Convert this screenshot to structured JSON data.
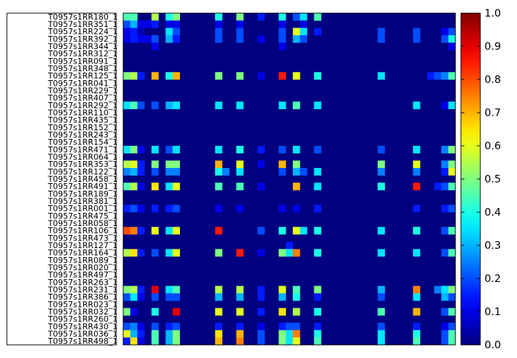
{
  "chart_data": {
    "type": "heatmap",
    "colormap": "jet",
    "row_labels": [
      "T0957s1RR180_1",
      "T0957s1RR351_1",
      "T0957s1RR224_1",
      "T0957s1RR392_1",
      "T0957s1RR344_1",
      "T0957s1RR312_1",
      "T0957s1RR091_1",
      "T0957s1RR348_1",
      "T0957s1RR125_1",
      "T0957s1RR041_1",
      "T0957s1RR229_1",
      "T0957s1RR407_1",
      "T0957s1RR292_1",
      "T0957s1RR110_1",
      "T0957s1RR435_1",
      "T0957s1RR152_1",
      "T0957s1RR243_1",
      "T0957s1RR154_1",
      "T0957s1RR471_1",
      "T0957s1RR064_1",
      "T0957s1RR353_1",
      "T0957s1RR122_1",
      "T0957s1RR458_1",
      "T0957s1RR491_1",
      "T0957s1RR189_1",
      "T0957s1RR381_1",
      "T0957s1RR001_1",
      "T0957s1RR475_1",
      "T0957s1RR058_1",
      "T0957s1RR106_1",
      "T0957s1RR473_1",
      "T0957s1RR127_1",
      "T0957s1RR164_1",
      "T0957s1RR089_1",
      "T0957s1RR020_1",
      "T0957s1RR497_1",
      "T0957s1RR263_1",
      "T0957s1RR231_1",
      "T0957s1RR386_1",
      "T0957s1RR023_1",
      "T0957s1RR032_1",
      "T0957s1RR260_1",
      "T0957s1RR430_1",
      "T0957s1RR036_1",
      "T0957s1RR498_1"
    ],
    "n_columns": 47,
    "colorbar": {
      "range": [
        0.0,
        1.0
      ],
      "ticks": [
        "0.0",
        "0.1",
        "0.2",
        "0.3",
        "0.4",
        "0.5",
        "0.6",
        "0.7",
        "0.8",
        "0.9",
        "1.0"
      ]
    },
    "cells": [
      [
        0,
        0,
        0.45
      ],
      [
        0,
        1,
        0.45
      ],
      [
        0,
        4,
        0.55
      ],
      [
        0,
        6,
        0.4
      ],
      [
        0,
        7,
        0.5
      ],
      [
        0,
        13,
        0.4
      ],
      [
        0,
        16,
        0.5
      ],
      [
        0,
        19,
        0.15
      ],
      [
        0,
        22,
        0.4
      ],
      [
        0,
        24,
        0.2
      ],
      [
        0,
        25,
        0.35
      ],
      [
        0,
        27,
        0.45
      ],
      [
        1,
        0,
        0.2
      ],
      [
        1,
        1,
        0.3
      ],
      [
        1,
        2,
        0.1
      ],
      [
        1,
        3,
        0.1
      ],
      [
        1,
        4,
        0.15
      ],
      [
        1,
        6,
        0.1
      ],
      [
        1,
        7,
        0.1
      ],
      [
        1,
        13,
        0.1
      ],
      [
        1,
        16,
        0.1
      ],
      [
        1,
        22,
        0.1
      ],
      [
        1,
        25,
        0.1
      ],
      [
        2,
        0,
        0.1
      ],
      [
        2,
        1,
        0.15
      ],
      [
        2,
        2,
        0.05
      ],
      [
        2,
        6,
        0.35
      ],
      [
        2,
        7,
        0.2
      ],
      [
        2,
        13,
        0.2
      ],
      [
        2,
        16,
        0.2
      ],
      [
        2,
        22,
        0.2
      ],
      [
        2,
        24,
        0.6
      ],
      [
        2,
        25,
        0.35
      ],
      [
        2,
        27,
        0.15
      ],
      [
        2,
        36,
        0.2
      ],
      [
        2,
        41,
        0.2
      ],
      [
        2,
        45,
        0.1
      ],
      [
        2,
        46,
        0.2
      ],
      [
        3,
        0,
        0.1
      ],
      [
        3,
        1,
        0.15
      ],
      [
        3,
        2,
        0.1
      ],
      [
        3,
        3,
        0.1
      ],
      [
        3,
        4,
        0.2
      ],
      [
        3,
        6,
        0.3
      ],
      [
        3,
        7,
        0.15
      ],
      [
        3,
        13,
        0.2
      ],
      [
        3,
        16,
        0.2
      ],
      [
        3,
        19,
        0.1
      ],
      [
        3,
        22,
        0.2
      ],
      [
        3,
        24,
        0.3
      ],
      [
        3,
        25,
        0.2
      ],
      [
        3,
        36,
        0.2
      ],
      [
        3,
        41,
        0.2
      ],
      [
        3,
        45,
        0.2
      ],
      [
        3,
        46,
        0.4
      ],
      [
        4,
        4,
        0.1
      ],
      [
        4,
        22,
        0.1
      ],
      [
        4,
        46,
        0.1
      ],
      [
        8,
        0,
        0.5
      ],
      [
        8,
        1,
        0.55
      ],
      [
        8,
        2,
        0.15
      ],
      [
        8,
        4,
        0.7
      ],
      [
        8,
        6,
        0.4
      ],
      [
        8,
        7,
        0.7
      ],
      [
        8,
        13,
        0.5
      ],
      [
        8,
        16,
        0.5
      ],
      [
        8,
        19,
        0.1
      ],
      [
        8,
        22,
        0.85
      ],
      [
        8,
        24,
        0.6
      ],
      [
        8,
        27,
        0.4
      ],
      [
        8,
        36,
        0.35
      ],
      [
        8,
        43,
        0.15
      ],
      [
        8,
        44,
        0.2
      ],
      [
        8,
        45,
        0.25
      ],
      [
        8,
        46,
        0.45
      ],
      [
        12,
        0,
        0.35
      ],
      [
        12,
        1,
        0.45
      ],
      [
        12,
        2,
        0.2
      ],
      [
        12,
        4,
        0.2
      ],
      [
        12,
        6,
        0.3
      ],
      [
        12,
        7,
        0.35
      ],
      [
        12,
        13,
        0.35
      ],
      [
        12,
        16,
        0.35
      ],
      [
        12,
        22,
        0.35
      ],
      [
        12,
        24,
        0.45
      ],
      [
        12,
        27,
        0.35
      ],
      [
        12,
        41,
        0.35
      ],
      [
        12,
        45,
        0.1
      ],
      [
        12,
        46,
        0.35
      ],
      [
        18,
        0,
        0.35
      ],
      [
        18,
        1,
        0.5
      ],
      [
        18,
        2,
        0.1
      ],
      [
        18,
        4,
        0.35
      ],
      [
        18,
        6,
        0.2
      ],
      [
        18,
        7,
        0.35
      ],
      [
        18,
        13,
        0.35
      ],
      [
        18,
        16,
        0.4
      ],
      [
        18,
        19,
        0.15
      ],
      [
        18,
        22,
        0.2
      ],
      [
        18,
        24,
        0.35
      ],
      [
        18,
        27,
        0.2
      ],
      [
        18,
        36,
        0.2
      ],
      [
        18,
        41,
        0.35
      ],
      [
        18,
        45,
        0.25
      ],
      [
        18,
        46,
        0.5
      ],
      [
        20,
        0,
        0.55
      ],
      [
        20,
        1,
        0.6
      ],
      [
        20,
        2,
        0.15
      ],
      [
        20,
        4,
        0.5
      ],
      [
        20,
        6,
        0.5
      ],
      [
        20,
        7,
        0.5
      ],
      [
        20,
        13,
        0.7
      ],
      [
        20,
        16,
        0.6
      ],
      [
        20,
        19,
        0.1
      ],
      [
        20,
        22,
        0.7
      ],
      [
        20,
        24,
        0.5
      ],
      [
        20,
        36,
        0.5
      ],
      [
        20,
        41,
        0.6
      ],
      [
        20,
        45,
        0.25
      ],
      [
        20,
        46,
        0.5
      ],
      [
        21,
        0,
        0.25
      ],
      [
        21,
        1,
        0.3
      ],
      [
        21,
        2,
        0.15
      ],
      [
        21,
        4,
        0.2
      ],
      [
        21,
        6,
        0.25
      ],
      [
        21,
        7,
        0.25
      ],
      [
        21,
        13,
        0.4
      ],
      [
        21,
        14,
        0.25
      ],
      [
        21,
        16,
        0.35
      ],
      [
        21,
        22,
        0.2
      ],
      [
        21,
        24,
        0.3
      ],
      [
        21,
        25,
        0.2
      ],
      [
        21,
        27,
        0.35
      ],
      [
        21,
        36,
        0.25
      ],
      [
        21,
        41,
        0.25
      ],
      [
        21,
        45,
        0.15
      ],
      [
        21,
        46,
        0.6
      ],
      [
        23,
        0,
        0.45
      ],
      [
        23,
        1,
        0.55
      ],
      [
        23,
        2,
        0.1
      ],
      [
        23,
        4,
        0.65
      ],
      [
        23,
        6,
        0.35
      ],
      [
        23,
        7,
        0.6
      ],
      [
        23,
        13,
        0.45
      ],
      [
        23,
        16,
        0.45
      ],
      [
        23,
        19,
        0.1
      ],
      [
        23,
        24,
        0.7
      ],
      [
        23,
        27,
        0.35
      ],
      [
        23,
        36,
        0.4
      ],
      [
        23,
        41,
        0.85
      ],
      [
        23,
        44,
        0.15
      ],
      [
        23,
        45,
        0.2
      ],
      [
        23,
        46,
        0.45
      ],
      [
        26,
        0,
        0.15
      ],
      [
        26,
        1,
        0.2
      ],
      [
        26,
        2,
        0.1
      ],
      [
        26,
        4,
        0.15
      ],
      [
        26,
        6,
        0.15
      ],
      [
        26,
        7,
        0.2
      ],
      [
        26,
        13,
        0.1
      ],
      [
        26,
        16,
        0.1
      ],
      [
        26,
        22,
        0.1
      ],
      [
        26,
        24,
        0.1
      ],
      [
        26,
        27,
        0.15
      ],
      [
        26,
        41,
        0.15
      ],
      [
        26,
        45,
        0.15
      ],
      [
        26,
        46,
        0.2
      ],
      [
        29,
        0,
        0.8
      ],
      [
        29,
        1,
        0.75
      ],
      [
        29,
        2,
        0.15
      ],
      [
        29,
        4,
        0.6
      ],
      [
        29,
        6,
        0.35
      ],
      [
        29,
        7,
        0.6
      ],
      [
        29,
        13,
        0.85
      ],
      [
        29,
        19,
        0.2
      ],
      [
        29,
        22,
        0.4
      ],
      [
        29,
        24,
        0.6
      ],
      [
        29,
        25,
        0.35
      ],
      [
        29,
        27,
        0.4
      ],
      [
        29,
        36,
        0.35
      ],
      [
        29,
        41,
        0.4
      ],
      [
        29,
        45,
        0.2
      ],
      [
        29,
        46,
        0.45
      ],
      [
        31,
        23,
        0.15
      ],
      [
        32,
        0,
        0.55
      ],
      [
        32,
        1,
        0.65
      ],
      [
        32,
        2,
        0.15
      ],
      [
        32,
        4,
        0.2
      ],
      [
        32,
        6,
        0.35
      ],
      [
        32,
        7,
        0.6
      ],
      [
        32,
        13,
        0.5
      ],
      [
        32,
        16,
        0.85
      ],
      [
        32,
        19,
        0.1
      ],
      [
        32,
        22,
        0.5
      ],
      [
        32,
        23,
        0.35
      ],
      [
        32,
        24,
        0.75
      ],
      [
        32,
        27,
        0.4
      ],
      [
        32,
        36,
        0.35
      ],
      [
        32,
        41,
        0.35
      ],
      [
        32,
        45,
        0.2
      ],
      [
        32,
        46,
        0.45
      ],
      [
        37,
        0,
        0.5
      ],
      [
        37,
        1,
        0.55
      ],
      [
        37,
        2,
        0.15
      ],
      [
        37,
        4,
        0.9
      ],
      [
        37,
        6,
        0.35
      ],
      [
        37,
        7,
        0.45
      ],
      [
        37,
        13,
        0.55
      ],
      [
        37,
        16,
        0.55
      ],
      [
        37,
        19,
        0.15
      ],
      [
        37,
        22,
        0.6
      ],
      [
        37,
        24,
        0.45
      ],
      [
        37,
        27,
        0.5
      ],
      [
        37,
        36,
        0.3
      ],
      [
        37,
        41,
        0.75
      ],
      [
        37,
        44,
        0.25
      ],
      [
        37,
        45,
        0.35
      ],
      [
        37,
        46,
        0.5
      ],
      [
        38,
        0,
        0.2
      ],
      [
        38,
        1,
        0.35
      ],
      [
        38,
        2,
        0.1
      ],
      [
        38,
        4,
        0.2
      ],
      [
        38,
        6,
        0.2
      ],
      [
        38,
        7,
        0.2
      ],
      [
        38,
        13,
        0.3
      ],
      [
        38,
        16,
        0.3
      ],
      [
        38,
        19,
        0.15
      ],
      [
        38,
        22,
        0.3
      ],
      [
        38,
        24,
        0.4
      ],
      [
        38,
        27,
        0.15
      ],
      [
        38,
        36,
        0.2
      ],
      [
        38,
        41,
        0.35
      ],
      [
        38,
        45,
        0.3
      ],
      [
        38,
        46,
        0.2
      ],
      [
        40,
        0,
        0.5
      ],
      [
        40,
        1,
        0.1
      ],
      [
        40,
        4,
        0.4
      ],
      [
        40,
        7,
        0.9
      ],
      [
        40,
        13,
        0.6
      ],
      [
        40,
        16,
        0.6
      ],
      [
        40,
        19,
        0.15
      ],
      [
        40,
        22,
        0.65
      ],
      [
        40,
        24,
        0.55
      ],
      [
        40,
        27,
        0.4
      ],
      [
        40,
        36,
        0.45
      ],
      [
        40,
        41,
        0.7
      ],
      [
        40,
        45,
        0.2
      ],
      [
        40,
        46,
        0.45
      ],
      [
        42,
        0,
        0.2
      ],
      [
        42,
        1,
        0.25
      ],
      [
        42,
        2,
        0.1
      ],
      [
        42,
        4,
        0.2
      ],
      [
        42,
        6,
        0.15
      ],
      [
        42,
        7,
        0.2
      ],
      [
        42,
        13,
        0.15
      ],
      [
        42,
        16,
        0.15
      ],
      [
        42,
        19,
        0.1
      ],
      [
        42,
        22,
        0.15
      ],
      [
        42,
        23,
        0.2
      ],
      [
        42,
        24,
        0.2
      ],
      [
        42,
        27,
        0.15
      ],
      [
        42,
        36,
        0.2
      ],
      [
        42,
        41,
        0.15
      ],
      [
        42,
        45,
        0.1
      ],
      [
        42,
        46,
        0.2
      ],
      [
        43,
        0,
        0.6
      ],
      [
        43,
        1,
        0.3
      ],
      [
        43,
        2,
        0.15
      ],
      [
        43,
        4,
        0.45
      ],
      [
        43,
        6,
        0.3
      ],
      [
        43,
        7,
        0.5
      ],
      [
        43,
        13,
        0.65
      ],
      [
        43,
        16,
        0.7
      ],
      [
        43,
        19,
        0.2
      ],
      [
        43,
        22,
        0.5
      ],
      [
        43,
        23,
        0.35
      ],
      [
        43,
        24,
        0.75
      ],
      [
        43,
        27,
        0.4
      ],
      [
        43,
        36,
        0.35
      ],
      [
        43,
        41,
        0.4
      ],
      [
        43,
        45,
        0.2
      ],
      [
        43,
        46,
        0.45
      ],
      [
        44,
        0,
        0.15
      ],
      [
        44,
        1,
        0.65
      ],
      [
        44,
        2,
        0.1
      ],
      [
        44,
        4,
        0.45
      ],
      [
        44,
        6,
        0.3
      ],
      [
        44,
        7,
        0.5
      ],
      [
        44,
        13,
        0.7
      ],
      [
        44,
        16,
        0.75
      ],
      [
        44,
        19,
        0.2
      ],
      [
        44,
        22,
        0.5
      ],
      [
        44,
        23,
        0.35
      ],
      [
        44,
        24,
        0.6
      ],
      [
        44,
        27,
        0.45
      ],
      [
        44,
        36,
        0.35
      ],
      [
        44,
        41,
        0.45
      ],
      [
        44,
        45,
        0.2
      ],
      [
        44,
        46,
        0.45
      ]
    ]
  }
}
